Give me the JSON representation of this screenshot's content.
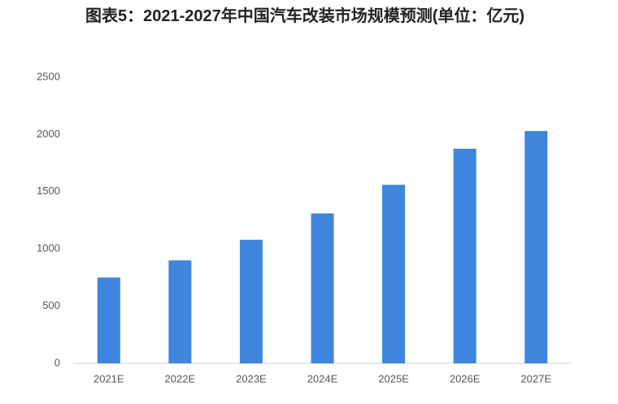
{
  "chart_data": {
    "type": "bar",
    "title": "图表5：2021-2027年中国汽车改装市场规模预测(单位：亿元)",
    "categories": [
      "2021E",
      "2022E",
      "2023E",
      "2024E",
      "2025E",
      "2026E",
      "2027E"
    ],
    "values": [
      750,
      900,
      1080,
      1310,
      1560,
      1875,
      2030
    ],
    "color": "#3d85dd",
    "ylim": [
      0,
      2500
    ],
    "yticks": [
      0,
      500,
      1000,
      1500,
      2000,
      2500
    ],
    "grid": false
  }
}
